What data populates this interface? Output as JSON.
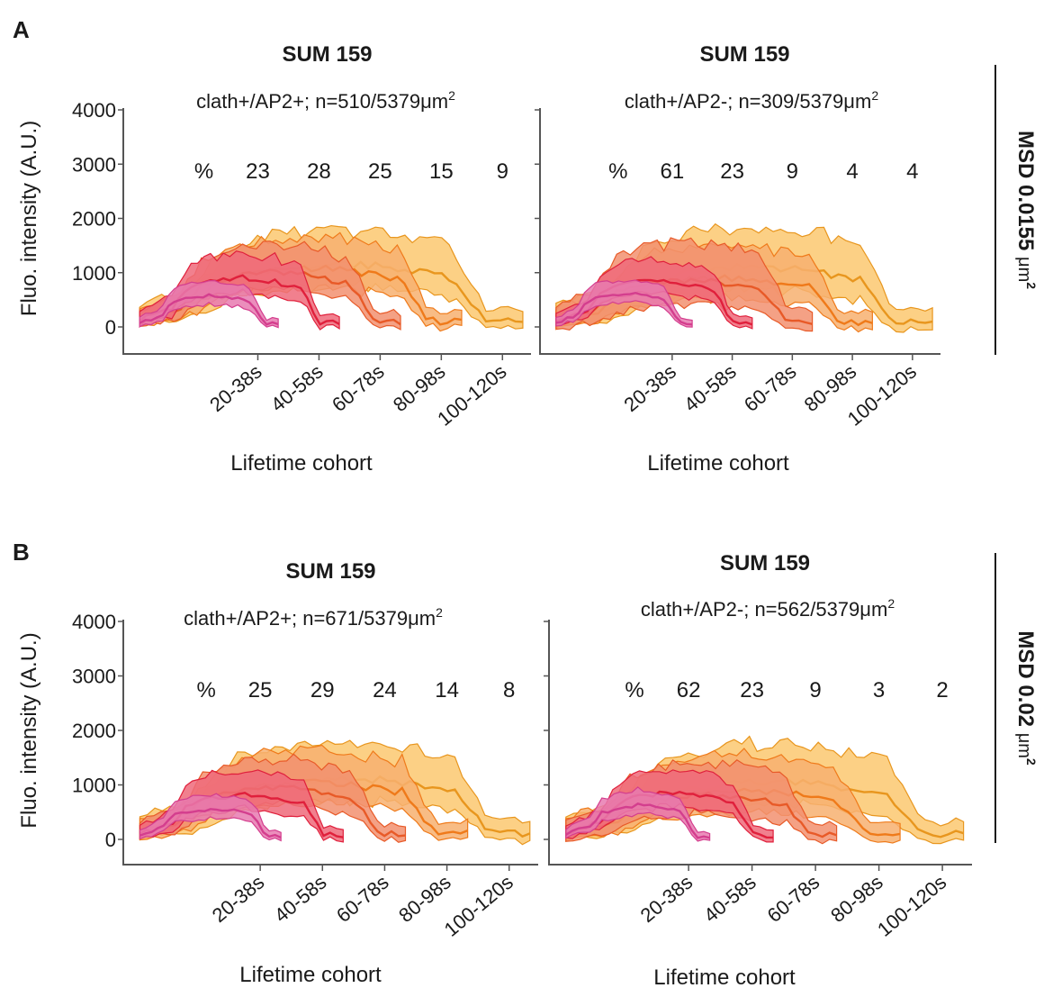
{
  "figure": {
    "panel_letters": [
      "A",
      "B"
    ],
    "y_axis_label": "Fluo. intensity (A.U.)",
    "x_axis_label": "Lifetime cohort",
    "row_labels": [
      {
        "text": "MSD 0.0155 ",
        "unit": "μm",
        "sup": "2"
      },
      {
        "text": "MSD 0.02 ",
        "unit": "μm",
        "sup": "2"
      }
    ]
  },
  "chart_data": [
    {
      "type": "area",
      "panel": "A",
      "title": "SUM 159",
      "subtitle": "clath+/AP2+; n=510/5379",
      "subtitle_unit": "μm",
      "subtitle_sup": "2",
      "ylabel": "Fluo. intensity (A.U.)",
      "xlabel": "Lifetime cohort",
      "ylim": [
        -500,
        4000
      ],
      "yticks": [
        0,
        1000,
        2000,
        3000,
        4000
      ],
      "categories": [
        "20-38s",
        "40-58s",
        "60-78s",
        "80-98s",
        "100-120s"
      ],
      "percent_label": "%",
      "percentages": [
        "23",
        "28",
        "25",
        "15",
        "9"
      ],
      "series": [
        {
          "peak": 580,
          "spread": 260,
          "color": "#d43e8e",
          "fill": "#e87ab0"
        },
        {
          "peak": 900,
          "spread": 430,
          "color": "#e0203c",
          "fill": "#ef6a7a"
        },
        {
          "peak": 1000,
          "spread": 500,
          "color": "#e85a28",
          "fill": "#f29070"
        },
        {
          "peak": 1080,
          "spread": 560,
          "color": "#ef7a1a",
          "fill": "#f7b070"
        },
        {
          "peak": 1150,
          "spread": 650,
          "color": "#e8961e",
          "fill": "#fcc870"
        }
      ]
    },
    {
      "type": "area",
      "panel": "A",
      "title": "SUM 159",
      "subtitle": "clath+/AP2-; n=309/5379",
      "subtitle_unit": "μm",
      "subtitle_sup": "2",
      "ylabel": "",
      "xlabel": "Lifetime cohort",
      "ylim": [
        -500,
        4000
      ],
      "yticks": [
        0,
        1000,
        2000,
        3000,
        4000
      ],
      "categories": [
        "20-38s",
        "40-58s",
        "60-78s",
        "80-98s",
        "100-120s"
      ],
      "percent_label": "%",
      "percentages": [
        "61",
        "23",
        "9",
        "4",
        "4"
      ],
      "series": [
        {
          "peak": 620,
          "spread": 250,
          "color": "#d43e8e",
          "fill": "#e87ab0"
        },
        {
          "peak": 850,
          "spread": 380,
          "color": "#e0203c",
          "fill": "#ef6a7a"
        },
        {
          "peak": 850,
          "spread": 700,
          "color": "#e85a28",
          "fill": "#f29070"
        },
        {
          "peak": 900,
          "spread": 600,
          "color": "#ef7a1a",
          "fill": "#f7b070"
        },
        {
          "peak": 1100,
          "spread": 700,
          "color": "#e8961e",
          "fill": "#fcc870"
        }
      ]
    },
    {
      "type": "area",
      "panel": "B",
      "title": "SUM 159",
      "subtitle": "clath+/AP2+; n=671/5379",
      "subtitle_unit": "μm",
      "subtitle_sup": "2",
      "ylabel": "Fluo. intensity (A.U.)",
      "xlabel": "Lifetime cohort",
      "ylim": [
        -500,
        4000
      ],
      "yticks": [
        0,
        1000,
        2000,
        3000,
        4000
      ],
      "categories": [
        "20-38s",
        "40-58s",
        "60-78s",
        "80-98s",
        "100-120s"
      ],
      "percent_label": "%",
      "percentages": [
        "25",
        "29",
        "24",
        "14",
        "8"
      ],
      "series": [
        {
          "peak": 550,
          "spread": 270,
          "color": "#d43e8e",
          "fill": "#e87ab0"
        },
        {
          "peak": 820,
          "spread": 430,
          "color": "#e0203c",
          "fill": "#ef6a7a"
        },
        {
          "peak": 940,
          "spread": 520,
          "color": "#e85a28",
          "fill": "#f29070"
        },
        {
          "peak": 1050,
          "spread": 580,
          "color": "#ef7a1a",
          "fill": "#f7b070"
        },
        {
          "peak": 1120,
          "spread": 660,
          "color": "#e8961e",
          "fill": "#fcc870"
        }
      ]
    },
    {
      "type": "area",
      "panel": "B",
      "title": "SUM 159",
      "subtitle": "clath+/AP2-; n=562/5379",
      "subtitle_unit": "μm",
      "subtitle_sup": "2",
      "ylabel": "",
      "xlabel": "Lifetime cohort",
      "ylim": [
        -500,
        4000
      ],
      "yticks": [
        0,
        1000,
        2000,
        3000,
        4000
      ],
      "categories": [
        "20-38s",
        "40-58s",
        "60-78s",
        "80-98s",
        "100-120s"
      ],
      "percent_label": "%",
      "percentages": [
        "62",
        "23",
        "9",
        "3",
        "2"
      ],
      "series": [
        {
          "peak": 620,
          "spread": 270,
          "color": "#d43e8e",
          "fill": "#e87ab0"
        },
        {
          "peak": 850,
          "spread": 400,
          "color": "#e0203c",
          "fill": "#ef6a7a"
        },
        {
          "peak": 820,
          "spread": 580,
          "color": "#e85a28",
          "fill": "#f29070"
        },
        {
          "peak": 900,
          "spread": 650,
          "color": "#ef7a1a",
          "fill": "#f7b070"
        },
        {
          "peak": 1050,
          "spread": 700,
          "color": "#e8961e",
          "fill": "#fcc870"
        }
      ]
    }
  ]
}
